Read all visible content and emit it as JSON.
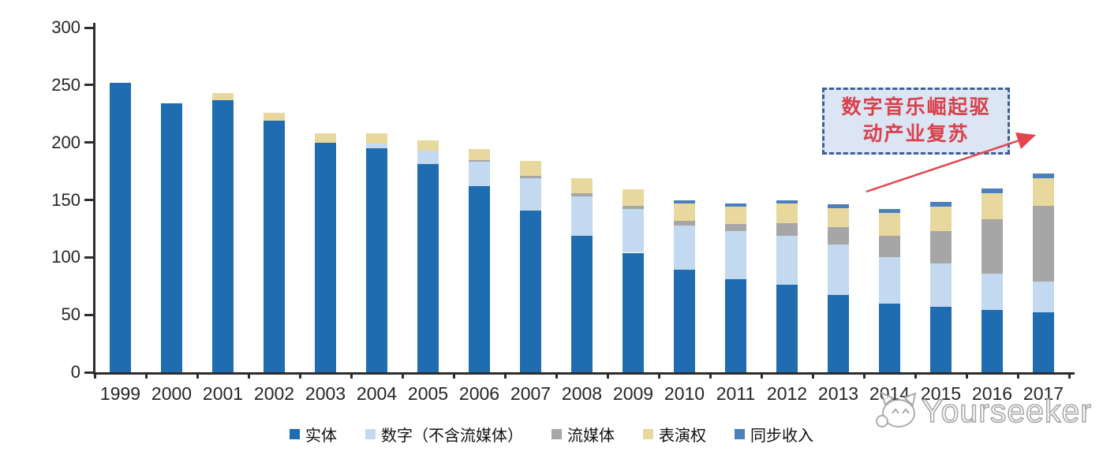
{
  "chart_data": {
    "type": "bar",
    "stacked": true,
    "title": "",
    "xlabel": "",
    "ylabel": "",
    "ylim": [
      0,
      300
    ],
    "yticks": [
      0,
      50,
      100,
      150,
      200,
      250,
      300
    ],
    "grid": false,
    "legend_position": "bottom",
    "categories": [
      "1999",
      "2000",
      "2001",
      "2002",
      "2003",
      "2004",
      "2005",
      "2006",
      "2007",
      "2008",
      "2009",
      "2010",
      "2011",
      "2012",
      "2013",
      "2014",
      "2015",
      "2016",
      "2017"
    ],
    "series": [
      {
        "name": "实体",
        "color": "#1F6CB0",
        "values": [
          252,
          234,
          237,
          219,
          200,
          195,
          181,
          162,
          141,
          119,
          104,
          89,
          81,
          76,
          67,
          60,
          57,
          54,
          52
        ]
      },
      {
        "name": "数字（不含流媒体）",
        "color": "#C3D9EF",
        "values": [
          0,
          0,
          0,
          0,
          0,
          4,
          12,
          21,
          28,
          34,
          38,
          39,
          42,
          43,
          44,
          40,
          38,
          32,
          27
        ]
      },
      {
        "name": "流媒体",
        "color": "#A6A6A6",
        "values": [
          0,
          0,
          0,
          0,
          0,
          0,
          0,
          2,
          2,
          3,
          3,
          4,
          6,
          11,
          15,
          19,
          28,
          47,
          66
        ]
      },
      {
        "name": "表演权",
        "color": "#E8D89E",
        "values": [
          0,
          0,
          6,
          7,
          8,
          9,
          9,
          9,
          13,
          13,
          14,
          15,
          15,
          17,
          17,
          20,
          21,
          23,
          24
        ]
      },
      {
        "name": "同步收入",
        "color": "#4C80BC",
        "values": [
          0,
          0,
          0,
          0,
          0,
          0,
          0,
          0,
          0,
          0,
          0,
          3,
          3,
          3,
          3,
          3,
          4,
          4,
          4
        ]
      }
    ],
    "totals": [
      252,
      234,
      243,
      226,
      208,
      208,
      202,
      194,
      184,
      169,
      159,
      150,
      147,
      150,
      146,
      142,
      148,
      160,
      173
    ]
  },
  "annotation": {
    "line1": "数字音乐崛起驱",
    "line2": "动产业复苏",
    "text_color": "#D8414C",
    "box_fill": "#DBE5F3",
    "box_border": "#3E5F9A",
    "arrow_color": "#E2454B"
  },
  "watermark": {
    "text": "Yourseeker",
    "logo": "cat-face-icon"
  },
  "axis": {
    "color": "#2D2D2D",
    "label_color": "#262626"
  }
}
